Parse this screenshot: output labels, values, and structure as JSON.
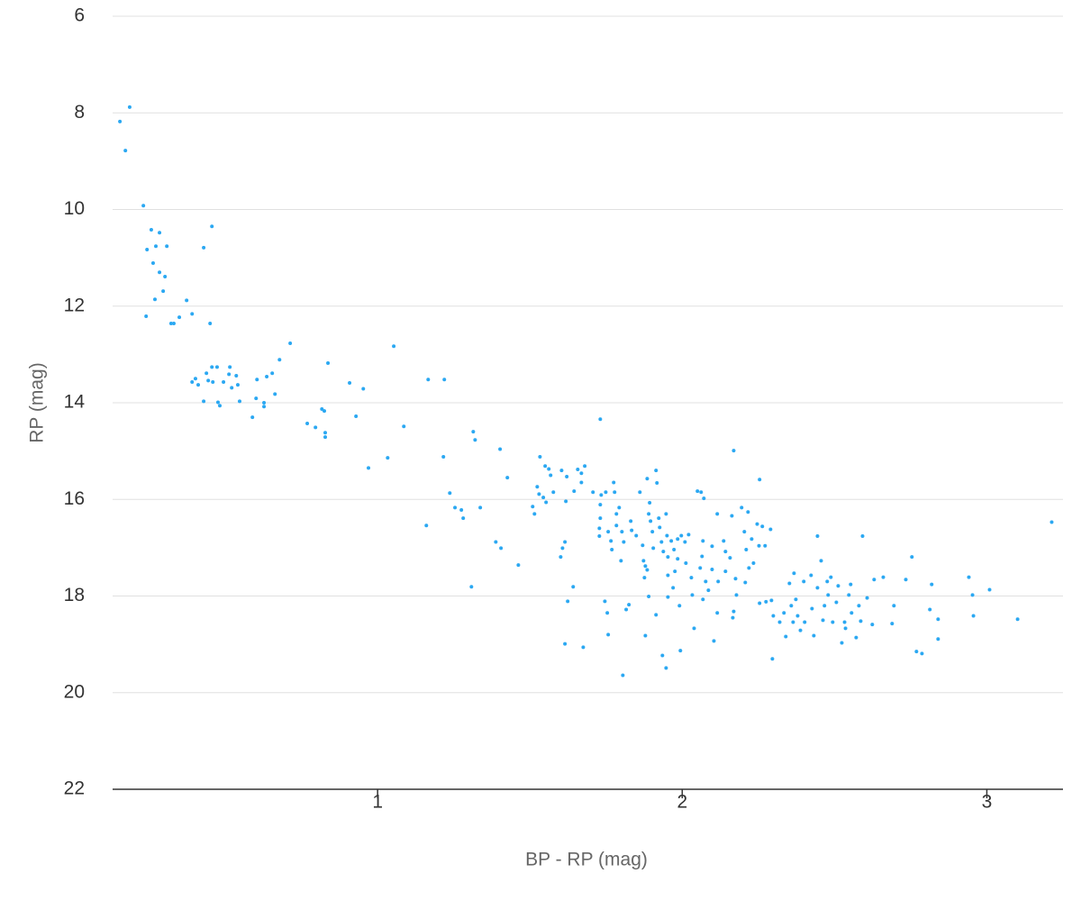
{
  "chart_data": {
    "type": "scatter",
    "x_label": "BP - RP (mag)",
    "y_label": "RP (mag)",
    "xlim": [
      0.13,
      3.25
    ],
    "xticks": [
      1,
      2,
      3
    ],
    "ylim": [
      6,
      22
    ],
    "yticks": [
      6,
      8,
      10,
      12,
      14,
      16,
      18,
      20,
      22
    ],
    "y_inverted": true,
    "grid": true,
    "color": "#2ba8f2",
    "x": [
      0.154,
      0.186,
      0.172,
      0.231,
      0.257,
      0.284,
      0.243,
      0.272,
      0.308,
      0.263,
      0.284,
      0.302,
      0.296,
      0.269,
      0.24,
      0.322,
      0.331,
      0.349,
      0.373,
      0.391,
      0.429,
      0.456,
      0.45,
      0.713,
      0.391,
      0.402,
      0.411,
      0.438,
      0.444,
      0.456,
      0.473,
      0.459,
      0.476,
      0.482,
      0.429,
      0.494,
      0.512,
      0.521,
      0.536,
      0.541,
      0.547,
      0.589,
      0.604,
      0.601,
      0.627,
      0.627,
      0.636,
      0.654,
      0.663,
      0.678,
      0.515,
      0.769,
      0.796,
      0.817,
      0.825,
      0.828,
      0.828,
      0.837,
      0.908,
      0.929,
      0.953,
      0.97,
      1.033,
      1.053,
      1.086,
      1.166,
      1.219,
      1.216,
      1.16,
      1.237,
      1.254,
      1.275,
      1.281,
      1.314,
      1.32,
      1.337,
      1.308,
      1.388,
      1.405,
      1.402,
      1.426,
      1.462,
      1.533,
      1.55,
      1.562,
      1.568,
      1.524,
      1.53,
      1.544,
      1.553,
      1.509,
      1.515,
      1.577,
      1.604,
      1.621,
      1.645,
      1.657,
      1.669,
      1.68,
      1.669,
      1.707,
      1.731,
      1.734,
      1.749,
      1.778,
      1.775,
      1.618,
      1.601,
      1.607,
      1.615,
      1.642,
      1.624,
      1.615,
      1.675,
      1.731,
      1.731,
      1.728,
      1.728,
      1.757,
      1.766,
      1.769,
      1.784,
      1.784,
      1.802,
      1.808,
      1.799,
      1.793,
      1.831,
      1.834,
      1.849,
      1.861,
      1.87,
      1.873,
      1.879,
      1.885,
      1.876,
      1.885,
      1.893,
      1.89,
      1.896,
      1.902,
      1.905,
      1.914,
      1.917,
      1.923,
      1.926,
      1.932,
      1.938,
      1.947,
      1.95,
      1.953,
      1.953,
      1.964,
      1.973,
      1.976,
      1.985,
      1.985,
      1.997,
      2.009,
      2.012,
      2.021,
      2.03,
      2.033,
      1.953,
      1.97,
      1.991,
      1.914,
      1.89,
      1.879,
      1.825,
      1.816,
      1.746,
      1.754,
      1.757,
      1.805,
      1.935,
      1.947,
      1.994,
      2.039,
      2.05,
      2.062,
      2.071,
      2.068,
      2.065,
      2.059,
      2.077,
      2.086,
      2.068,
      2.098,
      2.098,
      2.115,
      2.118,
      2.115,
      2.104,
      2.136,
      2.142,
      2.142,
      2.157,
      2.163,
      2.175,
      2.178,
      2.169,
      2.169,
      2.166,
      2.195,
      2.204,
      2.21,
      2.216,
      2.219,
      2.207,
      2.228,
      2.234,
      2.246,
      2.252,
      2.254,
      2.263,
      2.272,
      2.275,
      2.29,
      2.293,
      2.296,
      2.254,
      2.299,
      2.32,
      2.334,
      2.34,
      2.352,
      2.358,
      2.364,
      2.367,
      2.373,
      2.379,
      2.388,
      2.399,
      2.402,
      2.423,
      2.426,
      2.432,
      2.444,
      2.444,
      2.456,
      2.462,
      2.467,
      2.476,
      2.479,
      2.488,
      2.494,
      2.506,
      2.512,
      2.524,
      2.533,
      2.536,
      2.547,
      2.553,
      2.556,
      2.571,
      2.58,
      2.586,
      2.592,
      2.607,
      2.624,
      2.63,
      2.66,
      2.689,
      2.695,
      2.734,
      2.754,
      2.769,
      2.787,
      2.813,
      2.819,
      2.84,
      2.84,
      2.941,
      2.953,
      2.956,
      3.009,
      3.101,
      3.213
    ],
    "y": [
      8.18,
      7.88,
      8.78,
      9.92,
      10.42,
      10.48,
      10.83,
      10.76,
      10.76,
      11.11,
      11.3,
      11.39,
      11.69,
      11.86,
      12.21,
      12.36,
      12.36,
      12.23,
      11.88,
      12.16,
      10.79,
      10.35,
      12.36,
      12.77,
      13.57,
      13.5,
      13.63,
      13.39,
      13.54,
      13.26,
      13.26,
      13.57,
      13.99,
      14.06,
      13.97,
      13.57,
      13.41,
      13.69,
      13.44,
      13.63,
      13.97,
      14.3,
      13.52,
      13.91,
      14.0,
      14.08,
      13.46,
      13.39,
      13.82,
      13.11,
      13.26,
      14.43,
      14.51,
      14.13,
      14.17,
      14.62,
      14.71,
      13.18,
      13.59,
      14.28,
      13.71,
      15.35,
      15.14,
      12.83,
      14.49,
      13.52,
      13.52,
      15.12,
      16.54,
      15.87,
      16.17,
      16.22,
      16.39,
      14.6,
      14.77,
      16.17,
      17.81,
      16.88,
      17.01,
      14.96,
      15.55,
      17.36,
      15.12,
      15.31,
      15.37,
      15.5,
      15.74,
      15.89,
      15.96,
      16.06,
      16.15,
      16.3,
      15.85,
      15.4,
      15.53,
      15.83,
      15.38,
      15.46,
      15.31,
      15.65,
      15.85,
      14.34,
      15.91,
      15.85,
      15.85,
      15.65,
      16.04,
      17.19,
      17.01,
      16.88,
      17.81,
      18.11,
      18.99,
      19.06,
      16.11,
      16.39,
      16.6,
      16.76,
      16.67,
      16.86,
      17.04,
      16.3,
      16.54,
      16.67,
      16.88,
      17.27,
      16.17,
      16.45,
      16.64,
      16.75,
      15.85,
      16.95,
      17.27,
      17.38,
      17.46,
      17.62,
      15.57,
      16.07,
      16.3,
      16.45,
      16.67,
      17.01,
      15.4,
      15.66,
      16.39,
      16.58,
      16.88,
      17.08,
      16.3,
      16.75,
      17.19,
      17.57,
      16.86,
      17.04,
      17.49,
      16.82,
      17.23,
      16.75,
      16.88,
      17.32,
      16.73,
      17.62,
      17.98,
      18.02,
      17.83,
      18.2,
      18.39,
      18.01,
      18.82,
      18.18,
      18.28,
      18.11,
      18.35,
      18.8,
      19.64,
      19.23,
      19.49,
      19.13,
      18.67,
      15.83,
      15.85,
      15.98,
      16.86,
      17.18,
      17.42,
      17.7,
      17.88,
      18.07,
      16.97,
      17.45,
      16.3,
      17.7,
      18.35,
      18.93,
      16.86,
      17.08,
      17.49,
      17.21,
      16.34,
      17.64,
      17.98,
      14.99,
      18.32,
      18.45,
      16.17,
      16.67,
      17.04,
      16.26,
      17.42,
      17.72,
      16.82,
      17.32,
      16.51,
      16.96,
      15.59,
      16.56,
      16.96,
      18.12,
      16.62,
      18.09,
      19.3,
      18.15,
      18.41,
      18.54,
      18.35,
      18.84,
      17.74,
      18.2,
      18.54,
      17.53,
      18.07,
      18.41,
      18.71,
      17.7,
      18.54,
      17.57,
      18.26,
      18.82,
      17.83,
      16.76,
      17.27,
      18.5,
      18.2,
      17.7,
      17.98,
      17.61,
      18.54,
      18.13,
      17.79,
      18.97,
      18.54,
      18.67,
      17.98,
      17.76,
      18.35,
      18.86,
      18.2,
      18.52,
      16.76,
      18.04,
      18.59,
      17.66,
      17.61,
      18.57,
      18.2,
      17.66,
      17.19,
      19.15,
      19.19,
      18.28,
      17.76,
      18.48,
      18.89,
      17.61,
      17.98,
      18.41,
      17.87,
      18.48,
      16.47
    ]
  }
}
